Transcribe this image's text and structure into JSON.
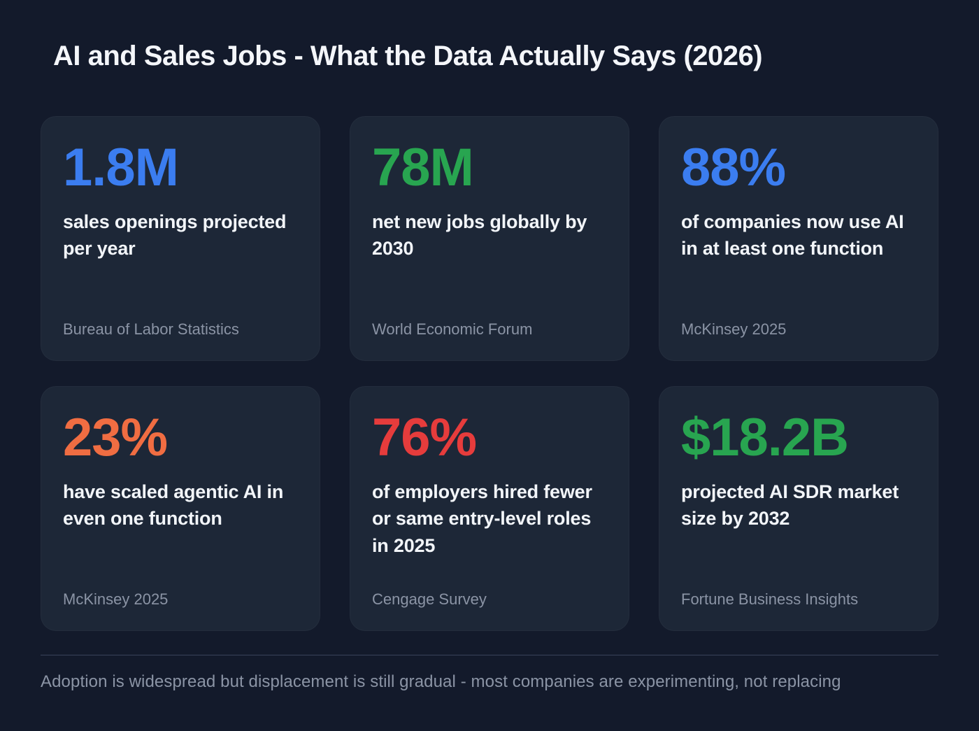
{
  "title": "AI and Sales Jobs - What the Data Actually Says (2026)",
  "cards": [
    {
      "value": "1.8M",
      "color": "#3b7df0",
      "description": "sales openings projected per year",
      "source": "Bureau of Labor Statistics"
    },
    {
      "value": "78M",
      "color": "#28a550",
      "description": "net new jobs globally by 2030",
      "source": "World Economic Forum"
    },
    {
      "value": "88%",
      "color": "#3b7df0",
      "description": "of companies now use AI in at least one function",
      "source": "McKinsey 2025"
    },
    {
      "value": "23%",
      "color": "#f06d42",
      "description": "have scaled agentic AI in even one function",
      "source": "McKinsey 2025"
    },
    {
      "value": "76%",
      "color": "#e63c3c",
      "description": "of employers hired fewer or same entry-level roles in 2025",
      "source": "Cengage Survey"
    },
    {
      "value": "$18.2B",
      "color": "#28a550",
      "description": "projected AI SDR market size by 2032",
      "source": "Fortune Business Insights"
    }
  ],
  "footer": "Adoption is widespread but displacement is still gradual - most companies are experimenting, not replacing",
  "colors": {
    "background": "#131a2b",
    "card_background": "#1d2737",
    "heading_text": "#f4f6fa",
    "body_text": "#f2f5f9",
    "muted_text": "#8b94a5",
    "divider": "#39425a",
    "accent_blue": "#3b7df0",
    "accent_green": "#28a550",
    "accent_orange": "#f06d42",
    "accent_red": "#e63c3c"
  },
  "chart_data": {
    "type": "table",
    "title": "AI and Sales Jobs - What the Data Actually Says (2026)",
    "columns": [
      "stat",
      "description",
      "source"
    ],
    "rows": [
      [
        "1.8M",
        "sales openings projected per year",
        "Bureau of Labor Statistics"
      ],
      [
        "78M",
        "net new jobs globally by 2030",
        "World Economic Forum"
      ],
      [
        "88%",
        "of companies now use AI in at least one function",
        "McKinsey 2025"
      ],
      [
        "23%",
        "have scaled agentic AI in even one function",
        "McKinsey 2025"
      ],
      [
        "76%",
        "of employers hired fewer or same entry-level roles in 2025",
        "Cengage Survey"
      ],
      [
        "$18.2B",
        "projected AI SDR market size by 2032",
        "Fortune Business Insights"
      ]
    ],
    "annotation": "Adoption is widespread but displacement is still gradual - most companies are experimenting, not replacing"
  }
}
